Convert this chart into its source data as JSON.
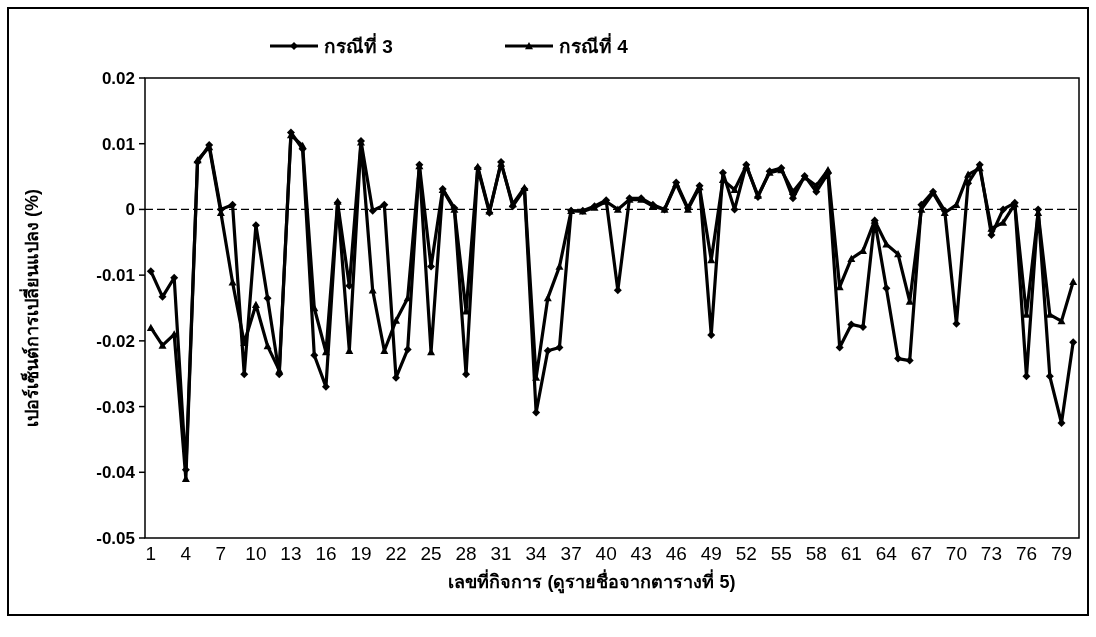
{
  "chart_data": {
    "type": "line",
    "ylabel": "เปอร์เซ็นต์การเปลี่ยนแปลง (%)",
    "xlabel": "เลขที่กิจการ (ดูรายชื่อจากตารางที่ 5)",
    "categories": [
      "1",
      null,
      null,
      "4",
      null,
      null,
      "7",
      null,
      null,
      "10",
      null,
      null,
      "13",
      null,
      null,
      "16",
      null,
      null,
      "19",
      null,
      null,
      "22",
      null,
      null,
      "25",
      null,
      null,
      "28",
      null,
      null,
      "31",
      null,
      null,
      "34",
      null,
      null,
      "37",
      null,
      null,
      "40",
      null,
      null,
      "43",
      null,
      null,
      "46",
      null,
      null,
      "49",
      null,
      null,
      "52",
      null,
      null,
      "55",
      null,
      null,
      "58",
      null,
      null,
      "61",
      null,
      null,
      "64",
      null,
      null,
      "67",
      null,
      null,
      "70",
      null,
      null,
      "73",
      null,
      null,
      "76",
      null,
      null,
      "79",
      null
    ],
    "series": [
      {
        "name": "กรณีที่ 3",
        "color": "#000000",
        "marker": "diamond",
        "values": [
          -0.0094,
          -0.0133,
          -0.0104,
          -0.0396,
          0.0072,
          0.0098,
          0.0,
          0.0007,
          -0.0251,
          -0.0024,
          -0.0135,
          -0.0251,
          0.0117,
          0.0092,
          -0.0222,
          -0.027,
          0.001,
          -0.0116,
          0.0104,
          -0.0002,
          0.0007,
          -0.0256,
          -0.0213,
          0.0068,
          -0.0087,
          0.0031,
          0.0002,
          -0.0251,
          0.0063,
          -0.0005,
          0.0072,
          0.0005,
          0.0031,
          -0.0309,
          -0.0215,
          -0.021,
          -0.0002,
          -0.0002,
          0.0005,
          0.0014,
          -0.0123,
          0.0017,
          0.0017,
          0.0007,
          0.0,
          0.0041,
          0.0002,
          0.0036,
          -0.0191,
          0.0056,
          0.0,
          0.0068,
          0.0019,
          0.0058,
          0.0063,
          0.0017,
          0.0051,
          0.0027,
          0.0055,
          -0.021,
          -0.0175,
          -0.0179,
          -0.0017,
          -0.012,
          -0.0227,
          -0.023,
          0.0007,
          0.0027,
          -0.0002,
          -0.0174,
          0.004,
          0.0068,
          -0.0039,
          0.0,
          0.001,
          -0.0254,
          0.0,
          -0.0254,
          -0.0325,
          -0.0202
        ]
      },
      {
        "name": "กรณีที่ 4",
        "color": "#000000",
        "marker": "triangle",
        "values": [
          -0.018,
          -0.0207,
          -0.019,
          -0.041,
          0.0075,
          0.0095,
          -0.0005,
          -0.0111,
          -0.0203,
          -0.0145,
          -0.0208,
          -0.0245,
          0.0113,
          0.0097,
          -0.015,
          -0.0217,
          0.0012,
          -0.0215,
          0.0102,
          -0.0123,
          -0.0215,
          -0.0169,
          -0.0135,
          0.0066,
          -0.0217,
          0.003,
          0.0,
          -0.0155,
          0.0065,
          -0.0003,
          0.007,
          0.0008,
          0.0033,
          -0.0256,
          -0.0135,
          -0.0087,
          -0.0002,
          -0.0003,
          0.0003,
          0.0012,
          0.0,
          0.0015,
          0.0015,
          0.0005,
          0.0,
          0.0039,
          0.0,
          0.0034,
          -0.0077,
          0.0045,
          0.003,
          0.0066,
          0.0021,
          0.0056,
          0.006,
          0.0027,
          0.0049,
          0.0036,
          0.006,
          -0.0118,
          -0.0075,
          -0.0063,
          -0.0017,
          -0.0053,
          -0.0068,
          -0.014,
          0.0,
          0.0025,
          -0.0005,
          0.0007,
          0.0053,
          0.0063,
          -0.0029,
          -0.002,
          0.0008,
          -0.016,
          -0.0005,
          -0.016,
          -0.017,
          -0.011
        ]
      }
    ],
    "ylim": [
      -0.05,
      0.02
    ],
    "yticks": [
      {
        "value": -0.05,
        "label": "-0.05"
      },
      {
        "value": -0.04,
        "label": "-0.04"
      },
      {
        "value": -0.03,
        "label": "-0.03"
      },
      {
        "value": -0.02,
        "label": "-0.02"
      },
      {
        "value": -0.01,
        "label": "-0.01"
      },
      {
        "value": 0,
        "label": "0"
      },
      {
        "value": 0.01,
        "label": "0.01"
      },
      {
        "value": 0.02,
        "label": "0.02"
      }
    ],
    "ref_lines": [
      {
        "axis": "y",
        "value": 0,
        "line_style": "dashed",
        "color": "#000000"
      }
    ],
    "grid": false,
    "legend": "top"
  }
}
